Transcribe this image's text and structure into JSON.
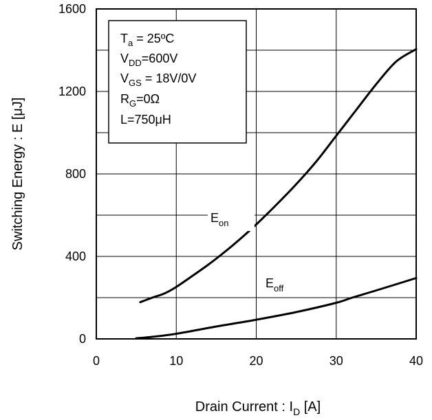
{
  "chart_data": {
    "type": "line",
    "xlabel": {
      "main": "Drain Current : I",
      "sub": "D",
      "post": " [A]"
    },
    "ylabel": "Switching Energy : E [μJ]",
    "xlim": [
      0,
      40
    ],
    "ylim": [
      0,
      1600
    ],
    "xticks": [
      0,
      10,
      20,
      30,
      40
    ],
    "yticks": [
      0,
      400,
      800,
      1200,
      1600
    ],
    "ygrid_minor": [
      200,
      600,
      1000,
      1400
    ],
    "grid": true,
    "conditions": {
      "ta": {
        "main": "T",
        "sub": "a",
        "post": " = 25ºC"
      },
      "vdd": {
        "main": "V",
        "sub": "DD",
        "post": "=600V"
      },
      "vgs": {
        "main": "V",
        "sub": "GS",
        "post": " = 18V/0V"
      },
      "rg": {
        "main": "R",
        "sub": "G",
        "post": "=0Ω"
      },
      "l": "L=750μH"
    },
    "series": [
      {
        "name": {
          "main": "E",
          "sub": "on"
        },
        "x": [
          5.5,
          7,
          8.5,
          10,
          12,
          14,
          16,
          18,
          20,
          22.5,
          25,
          27.5,
          30,
          32.5,
          35,
          37.5,
          40
        ],
        "y": [
          178,
          200,
          220,
          252,
          305,
          360,
          420,
          485,
          555,
          650,
          750,
          860,
          985,
          1110,
          1235,
          1345,
          1405
        ]
      },
      {
        "name": {
          "main": "E",
          "sub": "off"
        },
        "x": [
          5,
          7,
          10,
          15,
          20,
          25,
          30,
          32,
          35,
          40
        ],
        "y": [
          3,
          10,
          25,
          60,
          93,
          130,
          175,
          200,
          235,
          295
        ]
      }
    ]
  }
}
